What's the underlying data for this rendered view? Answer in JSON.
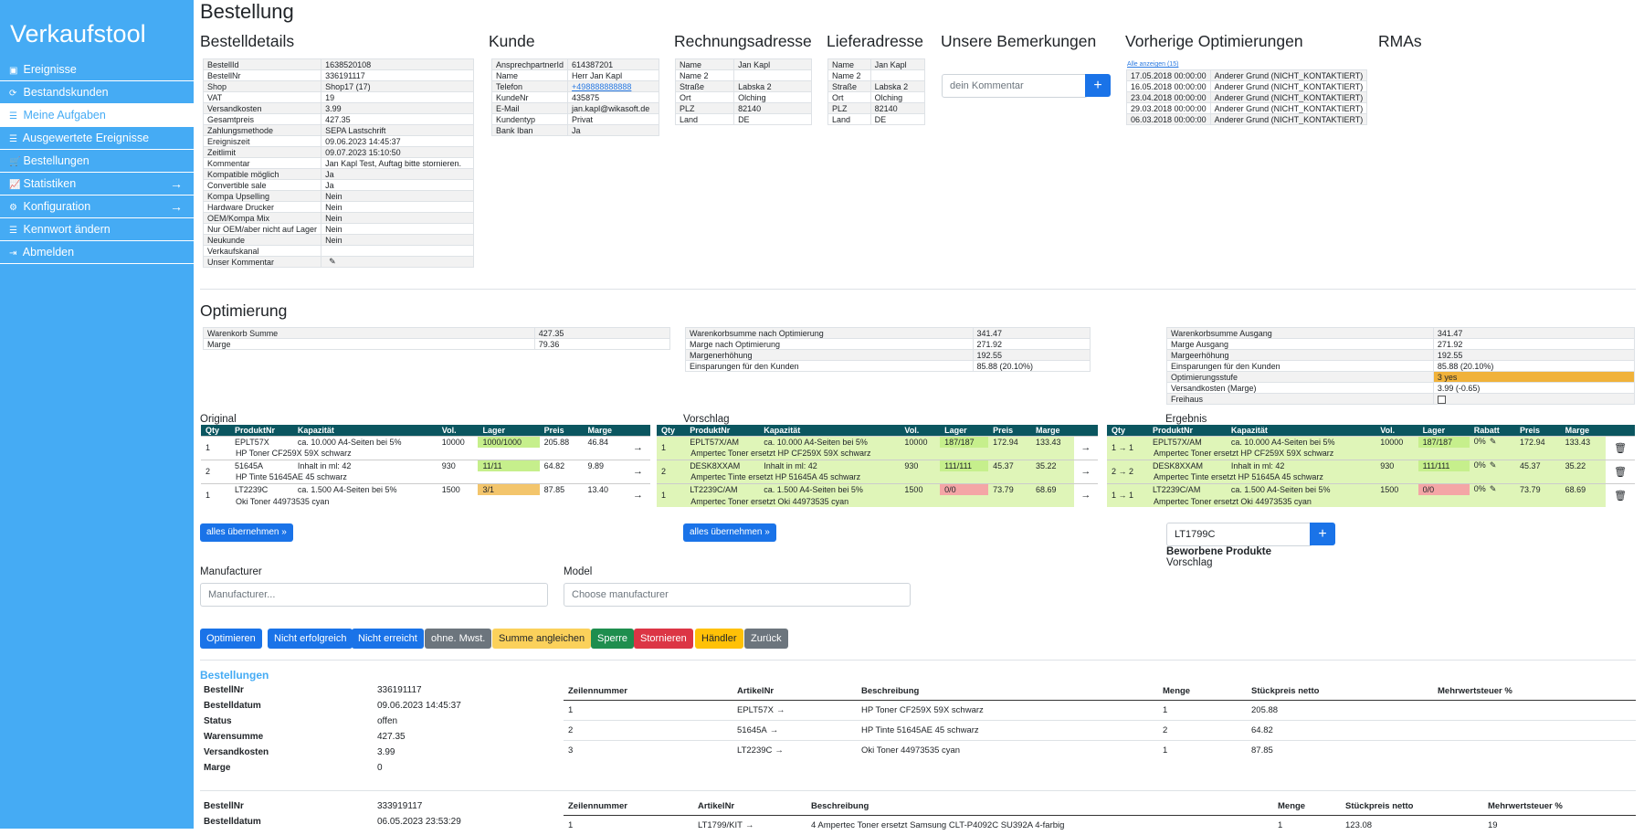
{
  "sidebar": {
    "brand": "Verkaufstool",
    "items": [
      {
        "icon": "calendar-icon",
        "glyph": "▣",
        "label": "Ereignisse"
      },
      {
        "icon": "refresh-icon",
        "glyph": "⟳",
        "label": "Bestandskunden"
      },
      {
        "icon": "list-icon",
        "glyph": "☰",
        "label": "Meine Aufgaben",
        "active": true
      },
      {
        "icon": "list-icon",
        "glyph": "☰",
        "label": "Ausgewertete Ereignisse"
      },
      {
        "icon": "cart-icon",
        "glyph": "🛒",
        "label": "Bestellungen"
      },
      {
        "icon": "chart-line-icon",
        "glyph": "📈",
        "label": "Statistiken",
        "arrow": true
      },
      {
        "icon": "gears-icon",
        "glyph": "⚙",
        "label": "Konfiguration",
        "arrow": true
      },
      {
        "icon": "list-icon",
        "glyph": "☰",
        "label": "Kennwort ändern"
      },
      {
        "icon": "sign-out-icon",
        "glyph": "⇥",
        "label": "Abmelden"
      }
    ]
  },
  "page_title": "Bestellung",
  "bestelldetails": {
    "title": "Bestelldetails",
    "rows": [
      [
        "BestellId",
        "1638520108"
      ],
      [
        "BestellNr",
        "336191117"
      ],
      [
        "Shop",
        "Shop17 (17)"
      ],
      [
        "VAT",
        "19"
      ],
      [
        "Versandkosten",
        "3.99"
      ],
      [
        "Gesamtpreis",
        "427.35"
      ],
      [
        "Zahlungsmethode",
        "SEPA Lastschrift"
      ],
      [
        "Ereigniszeit",
        "09.06.2023 14:45:37"
      ],
      [
        "Zeitlimit",
        "09.07.2023 15:10:50"
      ],
      [
        "Kommentar",
        "Jan Kapl Test, Auftag bitte stornieren."
      ],
      [
        "Kompatible möglich",
        "Ja"
      ],
      [
        "Convertible sale",
        "Ja"
      ],
      [
        "Kompa Upselling",
        "Nein"
      ],
      [
        "Hardware Drucker",
        "Nein"
      ],
      [
        "OEM/Kompa Mix",
        "Nein"
      ],
      [
        "Nur OEM/aber nicht auf Lager",
        "Nein"
      ],
      [
        "Neukunde",
        "Nein"
      ],
      [
        "Verkaufskanal",
        ""
      ],
      [
        "Unser Kommentar",
        ""
      ]
    ]
  },
  "kunde": {
    "title": "Kunde",
    "rows": [
      [
        "AnsprechpartnerId",
        "614387201"
      ],
      [
        "Name",
        "Herr Jan Kapl"
      ],
      [
        "Telefon",
        "+498888888888"
      ],
      [
        "KundeNr",
        "435875"
      ],
      [
        "E-Mail",
        "jan.kapl@wikasoft.de"
      ],
      [
        "Kundentyp",
        "Privat"
      ],
      [
        "Bank Iban",
        "Ja"
      ]
    ]
  },
  "rechnungsadresse": {
    "title": "Rechnungsadresse",
    "rows": [
      [
        "Name",
        "Jan Kapl"
      ],
      [
        "Name 2",
        ""
      ],
      [
        "Straße",
        "Labska 2"
      ],
      [
        "Ort",
        "Olching"
      ],
      [
        "PLZ",
        "82140"
      ],
      [
        "Land",
        "DE"
      ]
    ]
  },
  "lieferadresse": {
    "title": "Lieferadresse",
    "rows": [
      [
        "Name",
        "Jan Kapl"
      ],
      [
        "Name 2",
        ""
      ],
      [
        "Straße",
        "Labska 2"
      ],
      [
        "Ort",
        "Olching"
      ],
      [
        "PLZ",
        "82140"
      ],
      [
        "Land",
        "DE"
      ]
    ]
  },
  "bemerkungen": {
    "title": "Unsere Bemerkungen",
    "placeholder": "dein Kommentar",
    "plus": "+"
  },
  "vorherige": {
    "title": "Vorherige Optimierungen",
    "show_all": "Alle anzeigen (15)",
    "rows": [
      [
        "17.05.2018 00:00:00",
        "Anderer Grund (NICHT_KONTAKTIERT)"
      ],
      [
        "16.05.2018 00:00:00",
        "Anderer Grund (NICHT_KONTAKTIERT)"
      ],
      [
        "23.04.2018 00:00:00",
        "Anderer Grund (NICHT_KONTAKTIERT)"
      ],
      [
        "29.03.2018 00:00:00",
        "Anderer Grund (NICHT_KONTAKTIERT)"
      ],
      [
        "06.03.2018 00:00:00",
        "Anderer Grund (NICHT_KONTAKTIERT)"
      ]
    ]
  },
  "rmas": {
    "title": "RMAs"
  },
  "optimierung": {
    "title": "Optimierung",
    "summary1": [
      [
        "Warenkorb Summe",
        "427.35"
      ],
      [
        "Marge",
        "79.36"
      ]
    ],
    "summary2": [
      [
        "Warenkorbsumme nach Optimierung",
        "341.47"
      ],
      [
        "Marge nach Optimierung",
        "271.92"
      ],
      [
        "Margenerhöhung",
        "192.55"
      ],
      [
        "Einsparungen für den Kunden",
        "85.88 (20.10%)"
      ]
    ],
    "summary3": [
      [
        "Warenkorbsumme Ausgang",
        "341.47"
      ],
      [
        "Marge Ausgang",
        "271.92"
      ],
      [
        "Margeerhöhung",
        "192.55"
      ],
      [
        "Einsparungen für den Kunden",
        "85.88 (20.10%)"
      ],
      [
        "Optimierungsstufe",
        "3 yes"
      ],
      [
        "Versandkosten  (Marge)",
        "3.99 (-0.65)"
      ],
      [
        "Freihaus",
        ""
      ]
    ]
  },
  "original": {
    "title": "Original",
    "headers": [
      "Qty",
      "ProduktNr",
      "Kapazität",
      "Vol.",
      "Lager",
      "Preis",
      "Marge"
    ],
    "rows": [
      {
        "qty": "1",
        "nr": "EPLT57X",
        "kap": "ca. 10.000 A4-Seiten bei 5%",
        "vol": "10000",
        "lager": "1000/1000",
        "preis": "205.88",
        "marge": "46.84",
        "desc": "HP Toner CF259X 59X schwarz",
        "lagerClass": "green"
      },
      {
        "qty": "2",
        "nr": "51645A",
        "kap": "Inhalt in ml: 42",
        "vol": "930",
        "lager": "11/11",
        "preis": "64.82",
        "marge": "9.89",
        "desc": "HP Tinte 51645AE 45 schwarz",
        "lagerClass": "green"
      },
      {
        "qty": "1",
        "nr": "LT2239C",
        "kap": "ca. 1.500 A4-Seiten bei 5%",
        "vol": "1500",
        "lager": "3/1",
        "preis": "87.85",
        "marge": "13.40",
        "desc": "Oki Toner 44973535 cyan",
        "lagerClass": "yellow"
      }
    ],
    "button": "alles übernehmen"
  },
  "vorschlag": {
    "title": "Vorschlag",
    "headers": [
      "Qty",
      "ProduktNr",
      "Kapazität",
      "Vol.",
      "Lager",
      "Preis",
      "Marge"
    ],
    "rows": [
      {
        "qty": "1",
        "nr": "EPLT57X/AM",
        "kap": "ca. 10.000 A4-Seiten bei 5%",
        "vol": "10000",
        "lager": "187/187",
        "preis": "172.94",
        "marge": "133.43",
        "desc": "Ampertec Toner ersetzt HP CF259X 59X schwarz",
        "lagerClass": "green"
      },
      {
        "qty": "2",
        "nr": "DESK8XXAM",
        "kap": "Inhalt in ml: 42",
        "vol": "930",
        "lager": "111/111",
        "preis": "45.37",
        "marge": "35.22",
        "desc": "Ampertec Tinte ersetzt HP 51645A 45 schwarz",
        "lagerClass": "green"
      },
      {
        "qty": "1",
        "nr": "LT2239C/AM",
        "kap": "ca. 1.500 A4-Seiten bei 5%",
        "vol": "1500",
        "lager": "0/0",
        "preis": "73.79",
        "marge": "68.69",
        "desc": "Ampertec Toner ersetzt Oki 44973535 cyan",
        "lagerClass": "red"
      }
    ],
    "button": "alles übernehmen"
  },
  "ergebnis": {
    "title": "Ergebnis",
    "headers": [
      "Qty",
      "ProduktNr",
      "Kapazität",
      "Vol.",
      "Lager",
      "Rabatt",
      "Preis",
      "Marge"
    ],
    "rows": [
      {
        "qty": "1 → 1",
        "nr": "EPLT57X/AM",
        "kap": "ca. 10.000 A4-Seiten bei 5%",
        "vol": "10000",
        "lager": "187/187",
        "rabatt": "0%",
        "preis": "172.94",
        "marge": "133.43",
        "desc": "Ampertec Toner ersetzt HP CF259X 59X schwarz",
        "lagerClass": "green"
      },
      {
        "qty": "2 → 2",
        "nr": "DESK8XXAM",
        "kap": "Inhalt in ml: 42",
        "vol": "930",
        "lager": "111/111",
        "rabatt": "0%",
        "preis": "45.37",
        "marge": "35.22",
        "desc": "Ampertec Tinte ersetzt HP 51645A 45 schwarz",
        "lagerClass": "green"
      },
      {
        "qty": "1 → 1",
        "nr": "LT2239C/AM",
        "kap": "ca. 1.500 A4-Seiten bei 5%",
        "vol": "1500",
        "lager": "0/0",
        "rabatt": "0%",
        "preis": "73.79",
        "marge": "68.69",
        "desc": "Ampertec Toner ersetzt Oki 44973535 cyan",
        "lagerClass": "red"
      }
    ],
    "search_value": "LT1799C",
    "beworbene": "Beworbene Produkte",
    "vorschlag_label": "Vorschlag"
  },
  "filters": {
    "manufacturer_label": "Manufacturer",
    "manufacturer_placeholder": "Manufacturer...",
    "model_label": "Model",
    "model_placeholder": "Choose manufacturer"
  },
  "actions": {
    "optimieren": "Optimieren",
    "nicht_erfolgreich": "Nicht erfolgreich",
    "nicht_erreicht": "Nicht erreicht",
    "ohne_mwst": "ohne. Mwst.",
    "summe_angleichen": "Summe angleichen",
    "sperre": "Sperre",
    "stornieren": "Stornieren",
    "haendler": "Händler",
    "zurueck": "Zurück"
  },
  "bestellungen": {
    "title": "Bestellungen",
    "orders": [
      {
        "info": [
          [
            "BestellNr",
            "336191117"
          ],
          [
            "Bestelldatum",
            "09.06.2023 14:45:37"
          ],
          [
            "Status",
            "offen"
          ],
          [
            "Warensumme",
            "427.35"
          ],
          [
            "Versandkosten",
            "3.99"
          ],
          [
            "Marge",
            "0"
          ]
        ],
        "headers": [
          "Zeilennummer",
          "ArtikelNr",
          "Beschreibung",
          "Menge",
          "Stückpreis netto",
          "Mehrwertsteuer %"
        ],
        "lines": [
          [
            "1",
            "EPLT57X",
            "HP Toner CF259X 59X schwarz",
            "1",
            "205.88",
            ""
          ],
          [
            "2",
            "51645A",
            "HP Tinte 51645AE 45 schwarz",
            "2",
            "64.82",
            ""
          ],
          [
            "3",
            "LT2239C",
            "Oki Toner 44973535 cyan",
            "1",
            "87.85",
            ""
          ]
        ]
      },
      {
        "info": [
          [
            "BestellNr",
            "333919117"
          ],
          [
            "Bestelldatum",
            "06.05.2023 23:53:29"
          ]
        ],
        "headers": [
          "Zeilennummer",
          "ArtikelNr",
          "Beschreibung",
          "Menge",
          "Stückpreis netto",
          "Mehrwertsteuer %"
        ],
        "lines": [
          [
            "1",
            "LT1799/KIT",
            "4 Ampertec Toner ersetzt Samsung CLT-P4092C SU392A 4-farbig",
            "1",
            "123.08",
            "19"
          ]
        ]
      }
    ]
  }
}
